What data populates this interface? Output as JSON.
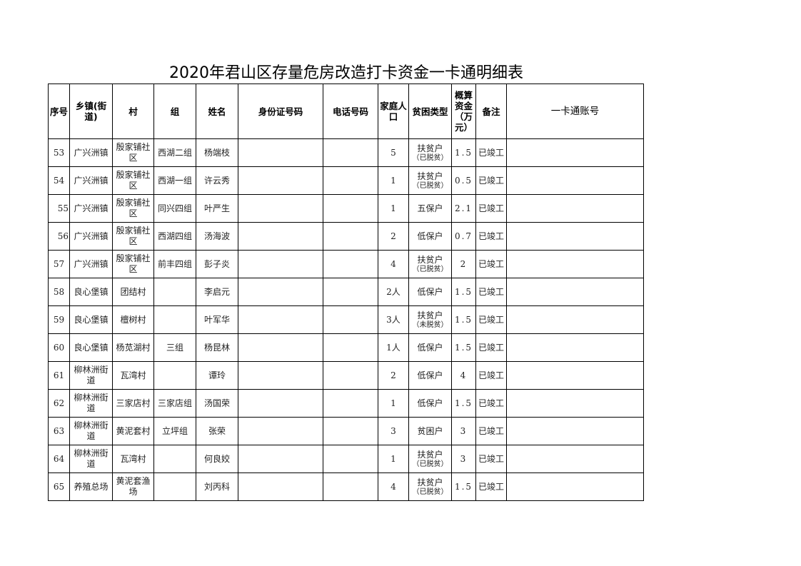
{
  "title": "2020年君山区存量危房改造打卡资金一卡通明细表",
  "columns": [
    "序号",
    "乡镇(街道)",
    "村",
    "组",
    "姓名",
    "身份证号码",
    "电话号码",
    "家庭人口",
    "贫困类型",
    "概算资金（万元）",
    "备注",
    "一卡通账号"
  ],
  "rows": [
    {
      "no": "53",
      "town": "广兴洲镇",
      "village": "殷家铺社区",
      "group": "西湖二组",
      "name": "杨端枝",
      "id": "",
      "phone": "",
      "family": "5",
      "type": "扶贫户",
      "type_note": "（已脱贫）",
      "fund": "1.5",
      "remark": "已竣工",
      "account": ""
    },
    {
      "no": "54",
      "town": "广兴洲镇",
      "village": "殷家铺社区",
      "group": "西湖一组",
      "name": "许云秀",
      "id": "",
      "phone": "",
      "family": "1",
      "type": "扶贫户",
      "type_note": "（已脱贫）",
      "fund": "0.5",
      "remark": "已竣工",
      "account": ""
    },
    {
      "no": "55",
      "town": "广兴洲镇",
      "village": "殷家铺社区",
      "group": "同兴四组",
      "name": "叶严生",
      "id": "",
      "phone": "",
      "family": "1",
      "type": "五保户",
      "type_note": "",
      "fund": "2.1",
      "remark": "已竣工",
      "account": ""
    },
    {
      "no": "56",
      "town": "广兴洲镇",
      "village": "殷家铺社区",
      "group": "西湖四组",
      "name": "汤海波",
      "id": "",
      "phone": "",
      "family": "2",
      "type": "低保户",
      "type_note": "",
      "fund": "0.7",
      "remark": "已竣工",
      "account": ""
    },
    {
      "no": "57",
      "town": "广兴洲镇",
      "village": "殷家铺社区",
      "group": "前丰四组",
      "name": "彭子炎",
      "id": "",
      "phone": "",
      "family": "4",
      "type": "扶贫户",
      "type_note": "（已脱贫）",
      "fund": "2",
      "remark": "已竣工",
      "account": ""
    },
    {
      "no": "58",
      "town": "良心堡镇",
      "village": "团结村",
      "group": "",
      "name": "李启元",
      "id": "",
      "phone": "",
      "family": "2人",
      "type": "低保户",
      "type_note": "",
      "fund": "1.5",
      "remark": "已竣工",
      "account": ""
    },
    {
      "no": "59",
      "town": "良心堡镇",
      "village": "檀树村",
      "group": "",
      "name": "叶军华",
      "id": "",
      "phone": "",
      "family": "3人",
      "type": "扶贫户",
      "type_note": "（未脱贫）",
      "fund": "1.5",
      "remark": "已竣工",
      "account": ""
    },
    {
      "no": "60",
      "town": "良心堡镇",
      "village": "杨苋湖村",
      "group": "三组",
      "name": "杨昆林",
      "id": "",
      "phone": "",
      "family": "1人",
      "type": "低保户",
      "type_note": "",
      "fund": "1.5",
      "remark": "已竣工",
      "account": ""
    },
    {
      "no": "61",
      "town": "柳林洲街道",
      "village": "瓦湾村",
      "group": "",
      "name": "谭玲",
      "id": "",
      "phone": "",
      "family": "2",
      "type": "低保户",
      "type_note": "",
      "fund": "4",
      "remark": "已竣工",
      "account": ""
    },
    {
      "no": "62",
      "town": "柳林洲街道",
      "village": "三家店村",
      "group": "三家店组",
      "name": "汤国荣",
      "id": "",
      "phone": "",
      "family": "1",
      "type": "低保户",
      "type_note": "",
      "fund": "1.5",
      "remark": "已竣工",
      "account": ""
    },
    {
      "no": "63",
      "town": "柳林洲街道",
      "village": "黄泥套村",
      "group": "立坪组",
      "name": "张荣",
      "id": "",
      "phone": "",
      "family": "3",
      "type": "贫困户",
      "type_note": "",
      "fund": "3",
      "remark": "已竣工",
      "account": ""
    },
    {
      "no": "64",
      "town": "柳林洲街道",
      "village": "瓦湾村",
      "group": "",
      "name": "何良姣",
      "id": "",
      "phone": "",
      "family": "1",
      "type": "扶贫户",
      "type_note": "（已脱贫）",
      "fund": "3",
      "remark": "已竣工",
      "account": ""
    },
    {
      "no": "65",
      "town": "养殖总场",
      "village": "黄泥套渔场",
      "group": "",
      "name": "刘丙科",
      "id": "",
      "phone": "",
      "family": "4",
      "type": "扶贫户",
      "type_note": "（已脱贫）",
      "fund": "1.5",
      "remark": "已竣工",
      "account": ""
    }
  ]
}
